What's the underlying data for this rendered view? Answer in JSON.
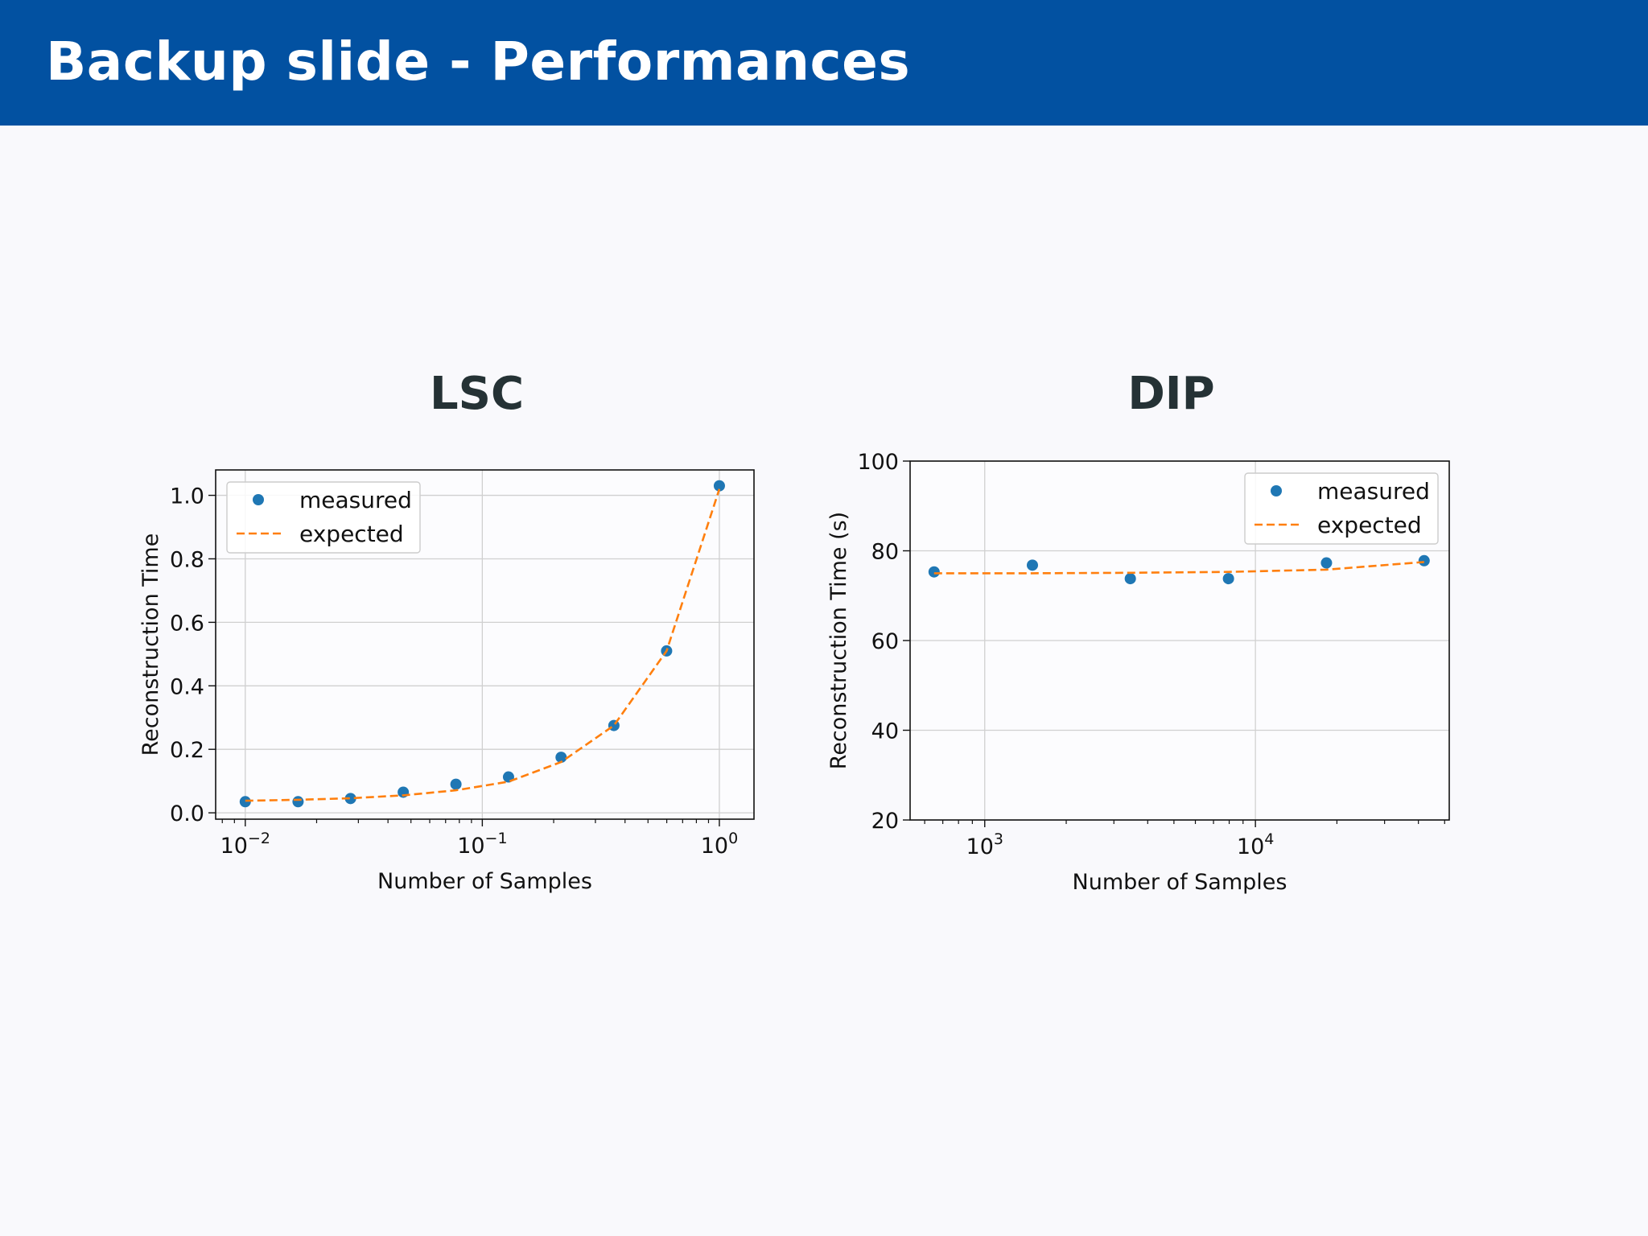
{
  "header": {
    "title": "Backup slide - Performances"
  },
  "colors": {
    "header_bg": "#0251a1",
    "measured": "#1f77b4",
    "expected": "#ff7f0e"
  },
  "chart_data": [
    {
      "type": "scatter",
      "title": "LSC",
      "xlabel": "Number of Samples",
      "ylabel": "Reconstruction Time",
      "xscale": "log",
      "xlim": [
        0.0075,
        1.4
      ],
      "ylim": [
        -0.02,
        1.08
      ],
      "xticks": [
        {
          "value": 0.01,
          "label": "10",
          "exp": "−2"
        },
        {
          "value": 0.1,
          "label": "10",
          "exp": "−1"
        },
        {
          "value": 1,
          "label": "10",
          "exp": "0"
        }
      ],
      "yticks": [
        {
          "value": 0.0,
          "label": "0.0"
        },
        {
          "value": 0.2,
          "label": "0.2"
        },
        {
          "value": 0.4,
          "label": "0.4"
        },
        {
          "value": 0.6,
          "label": "0.6"
        },
        {
          "value": 0.8,
          "label": "0.8"
        },
        {
          "value": 1.0,
          "label": "1.0"
        }
      ],
      "grid": true,
      "legend_position": "upper-left",
      "series": [
        {
          "name": "measured",
          "style": "points",
          "x": [
            0.01,
            0.0167,
            0.0278,
            0.0464,
            0.0774,
            0.129,
            0.215,
            0.359,
            0.599,
            1.0
          ],
          "y": [
            0.035,
            0.035,
            0.045,
            0.065,
            0.09,
            0.113,
            0.175,
            0.275,
            0.51,
            1.03
          ]
        },
        {
          "name": "expected",
          "style": "dashed",
          "x": [
            0.01,
            0.0167,
            0.0278,
            0.0464,
            0.0774,
            0.129,
            0.215,
            0.359,
            0.599,
            1.0
          ],
          "y": [
            0.038,
            0.041,
            0.046,
            0.055,
            0.071,
            0.098,
            0.16,
            0.275,
            0.51,
            1.02
          ]
        }
      ]
    },
    {
      "type": "scatter",
      "title": "DIP",
      "xlabel": "Number of Samples",
      "ylabel": "Reconstruction Time (s)",
      "xscale": "log",
      "xlim": [
        530,
        52000
      ],
      "ylim": [
        20,
        100
      ],
      "xticks": [
        {
          "value": 1000,
          "label": "10",
          "exp": "3"
        },
        {
          "value": 10000,
          "label": "10",
          "exp": "4"
        }
      ],
      "yticks": [
        {
          "value": 20,
          "label": "20"
        },
        {
          "value": 40,
          "label": "40"
        },
        {
          "value": 60,
          "label": "60"
        },
        {
          "value": 80,
          "label": "80"
        },
        {
          "value": 100,
          "label": "100"
        }
      ],
      "grid": true,
      "legend_position": "upper-right",
      "series": [
        {
          "name": "measured",
          "style": "points",
          "x": [
            650,
            1500,
            3450,
            7950,
            18300,
            42000
          ],
          "y": [
            75.3,
            76.8,
            73.8,
            73.8,
            77.3,
            77.8
          ]
        },
        {
          "name": "expected",
          "style": "dashed",
          "x": [
            650,
            1500,
            3450,
            7950,
            18300,
            42000
          ],
          "y": [
            75.0,
            75.0,
            75.1,
            75.3,
            75.8,
            77.5
          ]
        }
      ]
    }
  ]
}
